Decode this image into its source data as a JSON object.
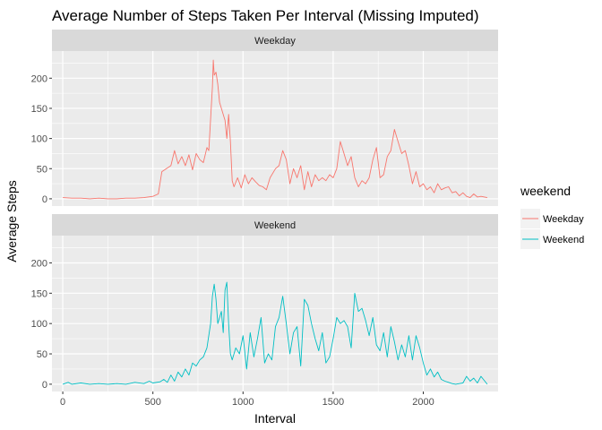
{
  "chart_data": {
    "type": "line",
    "title": "Average Number of Steps Taken Per Interval (Missing Imputed)",
    "xlabel": "Interval",
    "ylabel": "Average Steps",
    "xlim": [
      -60,
      2415
    ],
    "ylim": [
      -12,
      245
    ],
    "xticks": [
      0,
      500,
      1000,
      1500,
      2000
    ],
    "xtick_labels": [
      "0",
      "500",
      "1000",
      "1500",
      "2000"
    ],
    "yticks": [
      0,
      50,
      100,
      150,
      200
    ],
    "ytick_labels": [
      "0",
      "50",
      "100",
      "150",
      "200"
    ],
    "grid": true,
    "facet_by": "weekend",
    "legend": {
      "title": "weekend",
      "placement": "right",
      "entries": [
        "Weekday",
        "Weekend"
      ]
    },
    "panels": [
      {
        "strip": "Weekday",
        "series": [
          {
            "name": "Weekday",
            "color": "#F8766D",
            "points": [
              [
                0,
                2
              ],
              [
                50,
                1
              ],
              [
                100,
                1
              ],
              [
                150,
                0
              ],
              [
                200,
                1
              ],
              [
                250,
                0
              ],
              [
                300,
                0
              ],
              [
                350,
                1
              ],
              [
                400,
                1
              ],
              [
                450,
                2
              ],
              [
                500,
                4
              ],
              [
                530,
                8
              ],
              [
                550,
                45
              ],
              [
                600,
                55
              ],
              [
                620,
                80
              ],
              [
                640,
                58
              ],
              [
                660,
                70
              ],
              [
                680,
                55
              ],
              [
                700,
                73
              ],
              [
                720,
                48
              ],
              [
                740,
                75
              ],
              [
                760,
                65
              ],
              [
                780,
                60
              ],
              [
                800,
                85
              ],
              [
                810,
                80
              ],
              [
                830,
                185
              ],
              [
                835,
                230
              ],
              [
                840,
                205
              ],
              [
                850,
                210
              ],
              [
                860,
                190
              ],
              [
                870,
                160
              ],
              [
                880,
                150
              ],
              [
                900,
                130
              ],
              [
                910,
                100
              ],
              [
                920,
                140
              ],
              [
                930,
                95
              ],
              [
                940,
                30
              ],
              [
                950,
                20
              ],
              [
                970,
                35
              ],
              [
                990,
                18
              ],
              [
                1010,
                40
              ],
              [
                1030,
                25
              ],
              [
                1050,
                35
              ],
              [
                1070,
                28
              ],
              [
                1090,
                22
              ],
              [
                1110,
                20
              ],
              [
                1130,
                15
              ],
              [
                1150,
                35
              ],
              [
                1180,
                50
              ],
              [
                1200,
                55
              ],
              [
                1220,
                80
              ],
              [
                1240,
                65
              ],
              [
                1260,
                25
              ],
              [
                1280,
                50
              ],
              [
                1300,
                35
              ],
              [
                1320,
                55
              ],
              [
                1340,
                15
              ],
              [
                1360,
                45
              ],
              [
                1380,
                20
              ],
              [
                1400,
                40
              ],
              [
                1420,
                30
              ],
              [
                1440,
                35
              ],
              [
                1460,
                30
              ],
              [
                1480,
                40
              ],
              [
                1500,
                35
              ],
              [
                1520,
                50
              ],
              [
                1540,
                95
              ],
              [
                1560,
                75
              ],
              [
                1580,
                55
              ],
              [
                1600,
                70
              ],
              [
                1620,
                35
              ],
              [
                1640,
                20
              ],
              [
                1660,
                30
              ],
              [
                1680,
                25
              ],
              [
                1700,
                35
              ],
              [
                1720,
                65
              ],
              [
                1740,
                85
              ],
              [
                1760,
                35
              ],
              [
                1780,
                40
              ],
              [
                1800,
                70
              ],
              [
                1820,
                80
              ],
              [
                1840,
                115
              ],
              [
                1860,
                95
              ],
              [
                1880,
                75
              ],
              [
                1900,
                80
              ],
              [
                1920,
                55
              ],
              [
                1940,
                25
              ],
              [
                1960,
                45
              ],
              [
                1980,
                20
              ],
              [
                2000,
                25
              ],
              [
                2020,
                15
              ],
              [
                2040,
                20
              ],
              [
                2060,
                10
              ],
              [
                2080,
                25
              ],
              [
                2100,
                15
              ],
              [
                2120,
                18
              ],
              [
                2140,
                20
              ],
              [
                2160,
                10
              ],
              [
                2180,
                12
              ],
              [
                2200,
                5
              ],
              [
                2220,
                10
              ],
              [
                2240,
                4
              ],
              [
                2260,
                2
              ],
              [
                2280,
                8
              ],
              [
                2300,
                3
              ],
              [
                2320,
                4
              ],
              [
                2355,
                2
              ]
            ]
          }
        ]
      },
      {
        "strip": "Weekend",
        "series": [
          {
            "name": "Weekend",
            "color": "#00BFC4",
            "points": [
              [
                0,
                0
              ],
              [
                30,
                3
              ],
              [
                50,
                0
              ],
              [
                100,
                2
              ],
              [
                150,
                0
              ],
              [
                200,
                1
              ],
              [
                250,
                0
              ],
              [
                300,
                1
              ],
              [
                350,
                0
              ],
              [
                400,
                3
              ],
              [
                450,
                1
              ],
              [
                480,
                5
              ],
              [
                500,
                2
              ],
              [
                540,
                4
              ],
              [
                560,
                8
              ],
              [
                580,
                3
              ],
              [
                600,
                15
              ],
              [
                620,
                5
              ],
              [
                640,
                20
              ],
              [
                660,
                12
              ],
              [
                680,
                25
              ],
              [
                700,
                15
              ],
              [
                720,
                35
              ],
              [
                740,
                30
              ],
              [
                760,
                40
              ],
              [
                780,
                45
              ],
              [
                800,
                60
              ],
              [
                820,
                100
              ],
              [
                830,
                145
              ],
              [
                840,
                165
              ],
              [
                850,
                140
              ],
              [
                860,
                100
              ],
              [
                880,
                120
              ],
              [
                890,
                85
              ],
              [
                900,
                155
              ],
              [
                910,
                168
              ],
              [
                920,
                100
              ],
              [
                930,
                50
              ],
              [
                940,
                40
              ],
              [
                960,
                60
              ],
              [
                980,
                50
              ],
              [
                1000,
                80
              ],
              [
                1020,
                25
              ],
              [
                1040,
                85
              ],
              [
                1060,
                45
              ],
              [
                1080,
                75
              ],
              [
                1100,
                110
              ],
              [
                1120,
                35
              ],
              [
                1140,
                50
              ],
              [
                1160,
                40
              ],
              [
                1180,
                95
              ],
              [
                1200,
                110
              ],
              [
                1220,
                145
              ],
              [
                1240,
                100
              ],
              [
                1260,
                50
              ],
              [
                1280,
                85
              ],
              [
                1300,
                95
              ],
              [
                1320,
                30
              ],
              [
                1340,
                140
              ],
              [
                1360,
                130
              ],
              [
                1380,
                100
              ],
              [
                1400,
                75
              ],
              [
                1420,
                55
              ],
              [
                1440,
                85
              ],
              [
                1460,
                35
              ],
              [
                1480,
                45
              ],
              [
                1500,
                75
              ],
              [
                1520,
                110
              ],
              [
                1540,
                100
              ],
              [
                1560,
                105
              ],
              [
                1580,
                95
              ],
              [
                1600,
                60
              ],
              [
                1620,
                150
              ],
              [
                1640,
                120
              ],
              [
                1660,
                125
              ],
              [
                1680,
                105
              ],
              [
                1700,
                80
              ],
              [
                1720,
                110
              ],
              [
                1740,
                65
              ],
              [
                1760,
                55
              ],
              [
                1780,
                85
              ],
              [
                1800,
                45
              ],
              [
                1820,
                95
              ],
              [
                1840,
                70
              ],
              [
                1860,
                40
              ],
              [
                1880,
                65
              ],
              [
                1900,
                45
              ],
              [
                1920,
                80
              ],
              [
                1940,
                40
              ],
              [
                1960,
                80
              ],
              [
                1980,
                60
              ],
              [
                2000,
                35
              ],
              [
                2020,
                15
              ],
              [
                2040,
                25
              ],
              [
                2060,
                12
              ],
              [
                2080,
                20
              ],
              [
                2100,
                8
              ],
              [
                2120,
                5
              ],
              [
                2140,
                3
              ],
              [
                2160,
                1
              ],
              [
                2180,
                0
              ],
              [
                2200,
                1
              ],
              [
                2220,
                2
              ],
              [
                2240,
                13
              ],
              [
                2260,
                5
              ],
              [
                2280,
                10
              ],
              [
                2300,
                2
              ],
              [
                2320,
                13
              ],
              [
                2355,
                0
              ]
            ]
          }
        ]
      }
    ]
  }
}
